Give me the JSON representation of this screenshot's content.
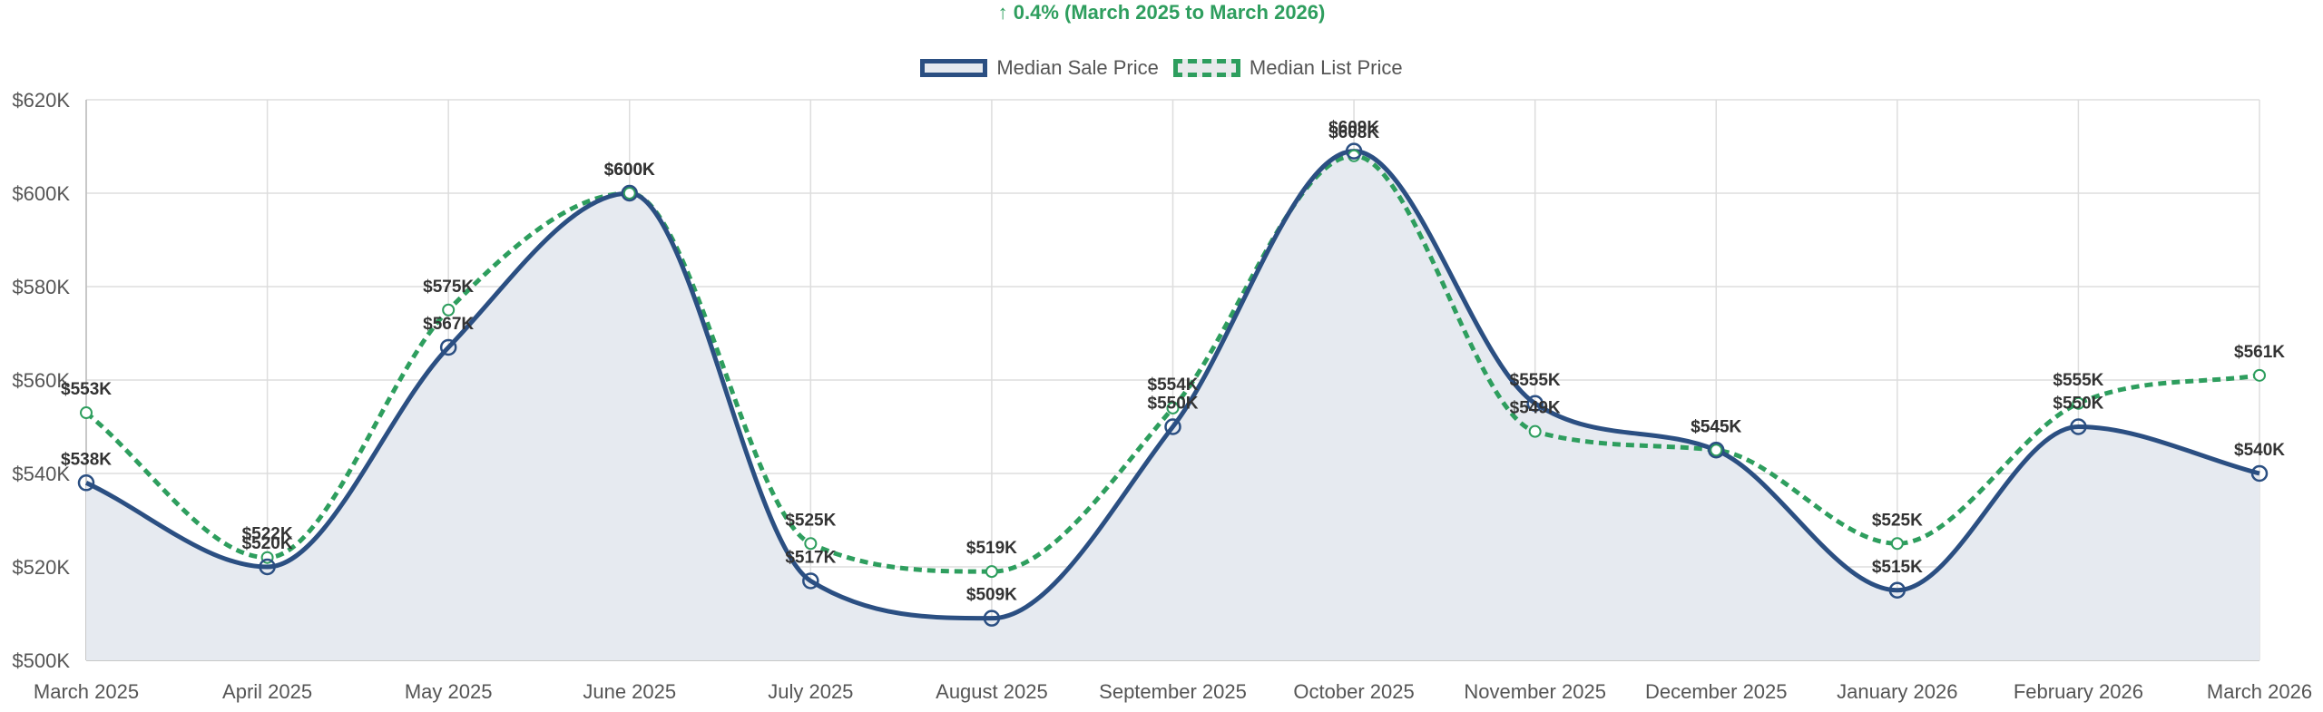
{
  "chart_data": {
    "type": "line",
    "title": "",
    "change_text": "↑ 0.4% (March 2025 to March 2026)",
    "xlabel": "",
    "ylabel": "",
    "ylim": [
      500000,
      620000
    ],
    "yticks": [
      500000,
      520000,
      540000,
      560000,
      580000,
      600000,
      620000
    ],
    "ytick_labels": [
      "$500K",
      "$520K",
      "$540K",
      "$560K",
      "$580K",
      "$600K",
      "$620K"
    ],
    "grid": true,
    "legend_position": "top-center",
    "categories": [
      "March 2025",
      "April 2025",
      "May 2025",
      "June 2025",
      "July 2025",
      "August 2025",
      "September 2025",
      "October 2025",
      "November 2025",
      "December 2025",
      "January 2026",
      "February 2026",
      "March 2026"
    ],
    "series": [
      {
        "name": "Median Sale Price",
        "color": "#2b4f82",
        "fill": "#e6eaf0",
        "style": "solid",
        "values": [
          538000,
          520000,
          567000,
          600000,
          517000,
          509000,
          550000,
          609000,
          555000,
          545000,
          515000,
          550000,
          540000
        ],
        "labels": [
          "$538K",
          "$520K",
          "$567K",
          "$600K",
          "$517K",
          "$509K",
          "$550K",
          "$609K",
          "$555K",
          "$545K",
          "$515K",
          "$550K",
          "$540K"
        ]
      },
      {
        "name": "Median List Price",
        "color": "#2e9e5e",
        "style": "dashed",
        "values": [
          553000,
          522000,
          575000,
          600000,
          525000,
          519000,
          554000,
          608000,
          549000,
          545000,
          525000,
          555000,
          561000
        ],
        "labels": [
          "$553K",
          "$522K",
          "$575K",
          "$600K",
          "$525K",
          "$519K",
          "$554K",
          "$608K",
          "$549K",
          "$545K",
          "$525K",
          "$555K",
          "$561K"
        ]
      }
    ]
  }
}
